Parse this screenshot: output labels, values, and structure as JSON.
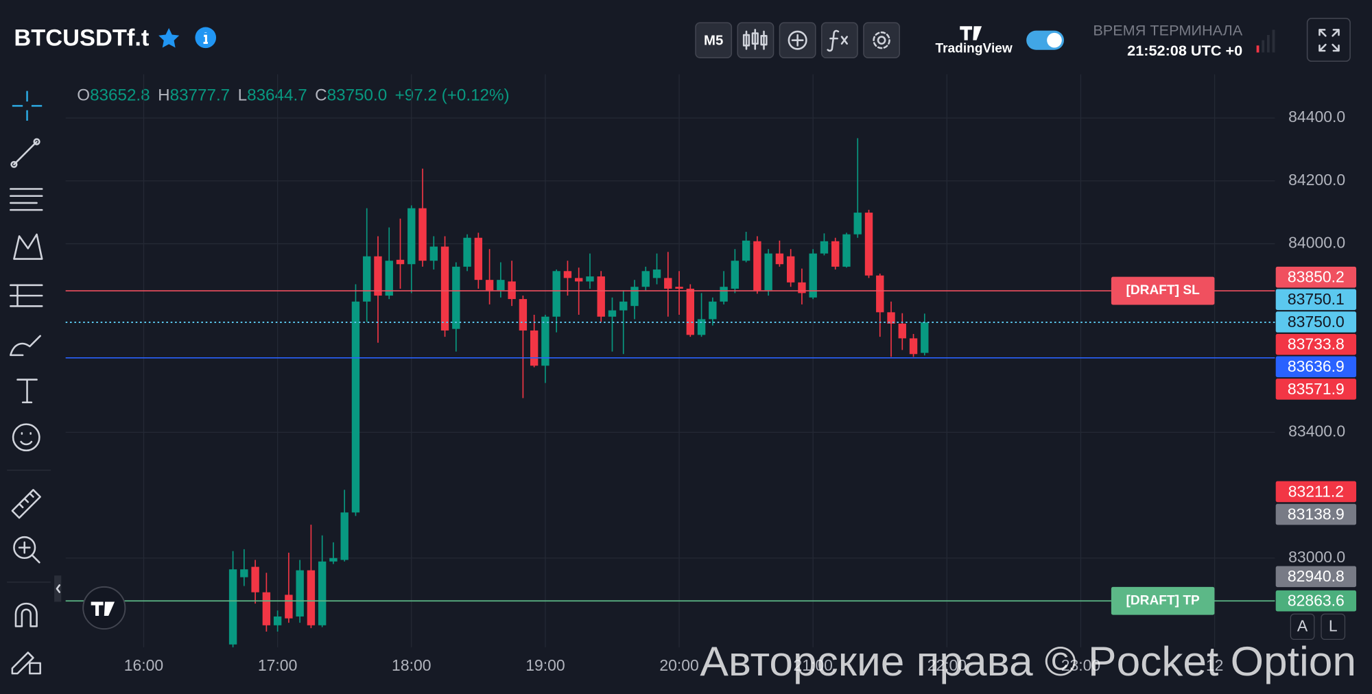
{
  "header": {
    "symbol": "BTCUSDTf.t",
    "timeframe": "M5",
    "brand": "TradingView",
    "terminal_time_label": "ВРЕМЯ ТЕРМИНАЛА",
    "terminal_time": "21:52:08 UTC +0"
  },
  "ohlc_legend": {
    "items": [
      {
        "key": "O",
        "value": "83652.8"
      },
      {
        "key": "H",
        "value": "83777.7"
      },
      {
        "key": "L",
        "value": "83644.7"
      },
      {
        "key": "C",
        "value": "83750.0"
      }
    ],
    "change": "+97.2 (+0.12%)"
  },
  "scale_buttons": [
    "A",
    "L"
  ],
  "watermark": "Авторские права © Pocket Option",
  "chart_data": {
    "type": "candlestick",
    "up_color": "#089981",
    "down_color": "#f23645",
    "grid": true,
    "x": [
      "16:40",
      "16:45",
      "16:50",
      "16:55",
      "17:00",
      "17:05",
      "17:10",
      "17:15",
      "17:20",
      "17:25",
      "17:30",
      "17:35",
      "17:40",
      "17:45",
      "17:50",
      "17:55",
      "18:00",
      "18:05",
      "18:10",
      "18:15",
      "18:20",
      "18:25",
      "18:30",
      "18:35",
      "18:40",
      "18:45",
      "18:50",
      "18:55",
      "19:00",
      "19:05",
      "19:10",
      "19:15",
      "19:20",
      "19:25",
      "19:30",
      "19:35",
      "19:40",
      "19:45",
      "19:50",
      "19:55",
      "20:00",
      "20:05",
      "20:10",
      "20:15",
      "20:20",
      "20:25",
      "20:30",
      "20:35",
      "20:40",
      "20:45",
      "20:50",
      "20:55",
      "21:00",
      "21:05",
      "21:10",
      "21:15",
      "21:20",
      "21:25",
      "21:30",
      "21:35",
      "21:40",
      "21:45",
      "21:50"
    ],
    "open": [
      82725,
      82939,
      82972,
      82891,
      82786,
      82883,
      82814,
      82961,
      82786,
      82989,
      82994,
      83145,
      83816,
      83960,
      83835,
      83949,
      83935,
      84113,
      83946,
      83991,
      83729,
      83927,
      84019,
      83885,
      83852,
      83880,
      83824,
      83724,
      83612,
      83768,
      83913,
      83891,
      83880,
      83896,
      83768,
      83788,
      83802,
      83863,
      83891,
      83891,
      83863,
      83857,
      83710,
      83760,
      83816,
      83857,
      83946,
      84008,
      83852,
      83969,
      83960,
      83877,
      83829,
      83969,
      84008,
      83927,
      84030,
      84099,
      83899,
      83782,
      83746,
      83699,
      83652.8
    ],
    "high": [
      83022,
      83028,
      82994,
      82953,
      82833,
      83017,
      82994,
      83106,
      83072,
      83050,
      83217,
      83871,
      84113,
      84024,
      84052,
      84080,
      84122,
      84239,
      84024,
      84024,
      83941,
      84030,
      84035,
      83983,
      83941,
      83946,
      83835,
      83774,
      83774,
      83918,
      83946,
      83924,
      83969,
      83913,
      83829,
      83852,
      83885,
      83927,
      83969,
      83974,
      83913,
      83871,
      83843,
      83829,
      83913,
      83983,
      84038,
      84024,
      83983,
      84010,
      83983,
      83921,
      83983,
      84033,
      84019,
      84035,
      84336,
      84108,
      83905,
      83816,
      83779,
      83713,
      83777.7
    ],
    "low": [
      82694,
      82911,
      82855,
      82766,
      82766,
      82794,
      82794,
      82777,
      82780,
      82981,
      82989,
      83134,
      83751,
      83685,
      83824,
      83857,
      83843,
      83927,
      83918,
      83704,
      83657,
      83913,
      83857,
      83807,
      83829,
      83802,
      83509,
      83607,
      83557,
      83718,
      83835,
      83774,
      83857,
      83751,
      83657,
      83649,
      83760,
      83852,
      83871,
      83768,
      83774,
      83704,
      83704,
      83740,
      83807,
      83843,
      83941,
      83841,
      83835,
      83927,
      83863,
      83807,
      83824,
      83963,
      83918,
      83924,
      84019,
      83891,
      83704,
      83640,
      83662,
      83640,
      83644.7
    ],
    "close": [
      82964,
      82964,
      82891,
      82786,
      82814,
      82808,
      82961,
      82786,
      82989,
      83000,
      83145,
      83816,
      83960,
      83835,
      83946,
      83935,
      84113,
      83946,
      83991,
      83724,
      83927,
      84019,
      83885,
      83852,
      83885,
      83824,
      83724,
      83612,
      83768,
      83913,
      83891,
      83880,
      83896,
      83768,
      83788,
      83816,
      83863,
      83913,
      83918,
      83857,
      83857,
      83710,
      83760,
      83816,
      83863,
      83946,
      84010,
      83852,
      83969,
      83935,
      83877,
      83843,
      83969,
      84008,
      83927,
      84030,
      84099,
      83899,
      83782,
      83746,
      83699,
      83649,
      83750
    ],
    "xlim": [
      "15:25",
      "24:27"
    ],
    "xticks": [
      "16:00",
      "17:00",
      "18:00",
      "19:00",
      "20:00",
      "21:00",
      "22:00",
      "23:00",
      {
        "value": "24:00",
        "label": "12"
      }
    ],
    "ylim": [
      82716,
      84539
    ],
    "yticks": [
      {
        "value": 83000,
        "label": "83000.0"
      },
      {
        "value": 83400,
        "label": "83400.0"
      },
      {
        "value": 84000,
        "label": "84000.0"
      },
      {
        "value": 84200,
        "label": "84200.0"
      },
      {
        "value": 84400,
        "label": "84400.0"
      }
    ],
    "levels": [
      {
        "label": "[DRAFT] SL",
        "value": 83850.2,
        "color": "#f0505f",
        "style": "solid"
      },
      {
        "value": 83750.0,
        "color": "#5bc8ef",
        "style": "dotted"
      },
      {
        "value": 83636.9,
        "color": "#2962ff",
        "style": "solid"
      },
      {
        "label": "[DRAFT] TP",
        "value": 82863.6,
        "color": "#5cb887",
        "style": "solid"
      }
    ],
    "price_tags": [
      {
        "value": 83850.2,
        "label": "83850.2",
        "color": "#f0505f",
        "text_color": "#ffffff"
      },
      {
        "value": 83750.1,
        "label": "83750.1",
        "color": "#5bc8ef",
        "text_color": "#131722"
      },
      {
        "value": 83750.0,
        "label": "83750.0",
        "color": "#5bc8ef",
        "text_color": "#131722"
      },
      {
        "value": 83733.8,
        "label": "83733.8",
        "color": "#f23645",
        "text_color": "#ffffff"
      },
      {
        "value": 83636.9,
        "label": "83636.9",
        "color": "#2962ff",
        "text_color": "#ffffff"
      },
      {
        "value": 83571.9,
        "label": "83571.9",
        "color": "#f23645",
        "text_color": "#ffffff"
      },
      {
        "value": 83211.2,
        "label": "83211.2",
        "color": "#f23645",
        "text_color": "#ffffff"
      },
      {
        "value": 83138.9,
        "label": "83138.9",
        "color": "#787b86",
        "text_color": "#ffffff"
      },
      {
        "value": 82940.8,
        "label": "82940.8",
        "color": "#787b86",
        "text_color": "#ffffff"
      },
      {
        "value": 82863.6,
        "label": "82863.6",
        "color": "#4caf7d",
        "text_color": "#ffffff"
      }
    ]
  }
}
